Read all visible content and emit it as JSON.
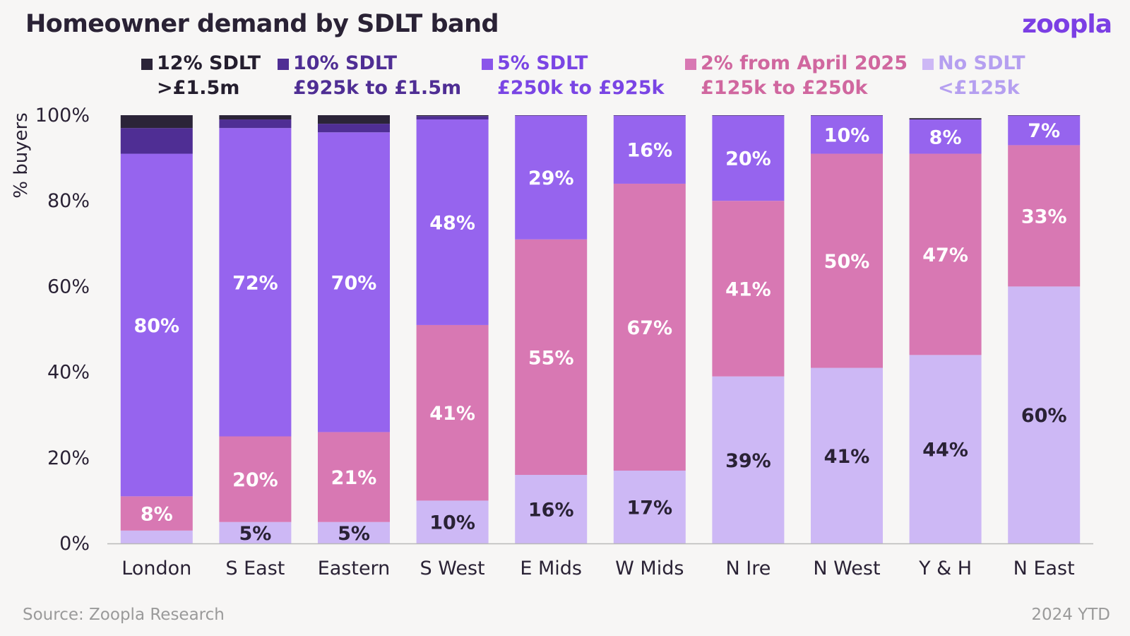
{
  "title": "Homeowner demand by SDLT band",
  "logo": "zoopla",
  "footer": {
    "source": "Source: Zoopla Research",
    "period": "2024 YTD"
  },
  "colors": {
    "b12": "#2b2438",
    "b10": "#4f2e94",
    "b5": "#9664ee",
    "b2": "#d878b3",
    "none": "#cdb8f5"
  },
  "legend": [
    {
      "key": "b12",
      "line1": "12% SDLT",
      "line2": ">£1.5m",
      "color": "#2b2438",
      "text_color": "#241e2e"
    },
    {
      "key": "b10",
      "line1": "10% SDLT",
      "line2": "£925k to £1.5m",
      "color": "#4f2e94",
      "text_color": "#4f2e94"
    },
    {
      "key": "b5",
      "line1": "5% SDLT",
      "line2": "£250k to £925k",
      "color": "#8a56ea",
      "text_color": "#7a45e4"
    },
    {
      "key": "b2",
      "line1": "2% from April 2025",
      "line2": "£125k to £250k",
      "color": "#d878b3",
      "text_color": "#d0679f"
    },
    {
      "key": "none",
      "line1": "No SDLT",
      "line2": "<£125k",
      "color": "#cdb8f5",
      "text_color": "#b59ff0"
    }
  ],
  "chart_data": {
    "type": "bar",
    "stacked": true,
    "title": "Homeowner demand by SDLT band",
    "ylabel": "% buyers",
    "ylim": [
      0,
      100
    ],
    "yticks": [
      "0%",
      "20%",
      "40%",
      "60%",
      "80%",
      "100%"
    ],
    "categories": [
      "London",
      "S East",
      "Eastern",
      "S West",
      "E Mids",
      "W Mids",
      "N Ire",
      "N West",
      "Y & H",
      "N East"
    ],
    "series": [
      {
        "key": "none",
        "name": "No SDLT <£125k",
        "values": [
          3,
          5,
          5,
          10,
          16,
          17,
          39,
          41,
          44,
          60
        ],
        "labels": [
          "",
          "5%",
          "5%",
          "10%",
          "16%",
          "17%",
          "39%",
          "41%",
          "44%",
          "60%"
        ]
      },
      {
        "key": "b2",
        "name": "2% from April 2025 £125k to £250k",
        "values": [
          8,
          20,
          21,
          41,
          55,
          67,
          41,
          50,
          47,
          33
        ],
        "labels": [
          "8%",
          "20%",
          "21%",
          "41%",
          "55%",
          "67%",
          "41%",
          "50%",
          "47%",
          "33%"
        ]
      },
      {
        "key": "b5",
        "name": "5% SDLT £250k to £925k",
        "values": [
          80,
          72,
          70,
          48,
          29,
          16,
          20,
          10,
          8,
          7
        ],
        "labels": [
          "80%",
          "72%",
          "70%",
          "48%",
          "29%",
          "16%",
          "20%",
          "10%",
          "8%",
          "7%"
        ]
      },
      {
        "key": "b10",
        "name": "10% SDLT £925k to £1.5m",
        "values": [
          6,
          2,
          2,
          0.8,
          0,
          0,
          0,
          0,
          0,
          0
        ],
        "labels": [
          "",
          "",
          "",
          "",
          "",
          "",
          "",
          "",
          "",
          ""
        ]
      },
      {
        "key": "b12",
        "name": "12% SDLT >£1.5m",
        "values": [
          3,
          1,
          2,
          0.5,
          0.3,
          0.3,
          0.3,
          0.3,
          0.3,
          0.3
        ],
        "labels": [
          "",
          "",
          "",
          "",
          "",
          "",
          "",
          "",
          "",
          ""
        ]
      }
    ]
  }
}
